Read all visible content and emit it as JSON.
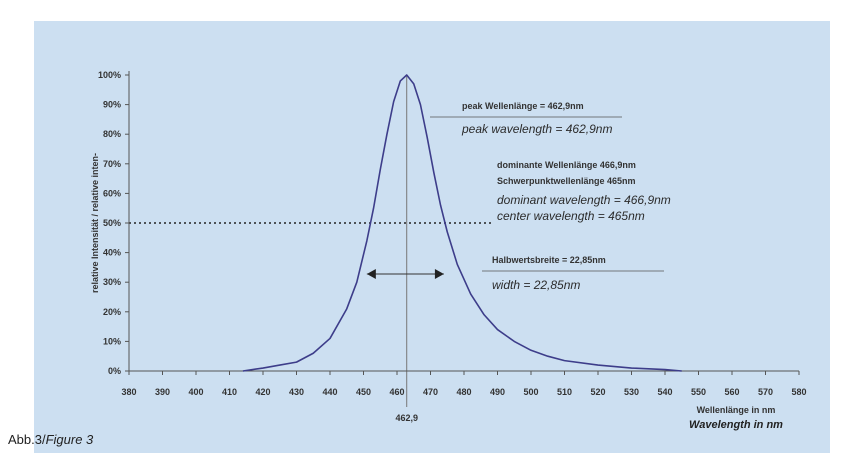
{
  "caption": {
    "prefix": "Abb.3/",
    "label": "Figure 3"
  },
  "chart_data": {
    "type": "line",
    "ylabel": "relative Intensität / relative inten-",
    "xlabel_de": "Wellenlänge in nm",
    "xlabel_en": "Wavelength in nm",
    "x_ticks": [
      380,
      390,
      400,
      410,
      420,
      430,
      440,
      450,
      460,
      470,
      480,
      490,
      500,
      510,
      520,
      530,
      540,
      550,
      560,
      570,
      580
    ],
    "y_ticks": [
      "0%",
      "10%",
      "20%",
      "30%",
      "40%",
      "50%",
      "60%",
      "70%",
      "80%",
      "90%",
      "100%"
    ],
    "xlim": [
      380,
      580
    ],
    "ylim": [
      0,
      100
    ],
    "peak_label": "462,9",
    "half_max_level": 50,
    "half_width_arrow": [
      451,
      474
    ],
    "series": [
      {
        "x": [
          414,
          420,
          425,
          430,
          435,
          440,
          445,
          448,
          451,
          453,
          455,
          457,
          459,
          461,
          462.9,
          465,
          467,
          469,
          471,
          473,
          475,
          478,
          482,
          486,
          490,
          495,
          500,
          505,
          510,
          520,
          530,
          540,
          545
        ],
        "y": [
          0,
          1,
          2,
          3,
          6,
          11,
          21,
          30,
          44,
          55,
          68,
          80,
          91,
          98,
          100,
          97,
          90,
          79,
          67,
          56,
          47,
          36,
          26,
          19,
          14,
          10,
          7,
          5,
          3.5,
          2,
          1,
          0.5,
          0
        ]
      }
    ],
    "annotations": [
      {
        "de": "peak Wellenlänge = 462,9nm",
        "en": "peak wavelength = 462,9nm"
      },
      {
        "de": "dominante Wellenlänge 466,9nm",
        "de2": "Schwerpunktwellenlänge 465nm",
        "en": "dominant wavelength = 466,9nm",
        "en2": "center wavelength = 465nm"
      },
      {
        "de": "Halbwertsbreite = 22,85nm",
        "en": "width = 22,85nm"
      }
    ],
    "colors": {
      "background": "#ccdff1",
      "curve": "#3d3d8a",
      "dotted": "#222222"
    }
  }
}
